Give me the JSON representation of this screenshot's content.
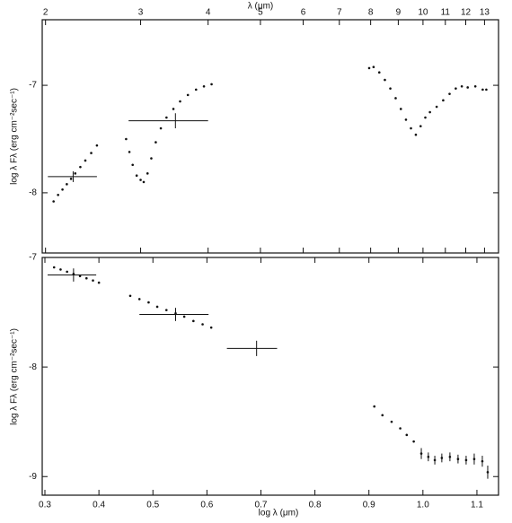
{
  "chart_data": [
    {
      "type": "scatter",
      "xlabel": "λ (μm)",
      "ylabel": "log λ Fλ (erg cm⁻²sec⁻¹)",
      "xscale": "log",
      "xlim": [
        1.972,
        13.8
      ],
      "xticks": [
        2,
        3,
        4,
        5,
        6,
        7,
        8,
        9,
        10,
        11,
        12,
        13
      ],
      "ylim": [
        -8.56,
        -6.39
      ],
      "yticks": [
        -8,
        -7
      ],
      "points": {
        "x": [
          2.07,
          2.11,
          2.15,
          2.19,
          2.23,
          2.27,
          2.32,
          2.37,
          2.43,
          2.49,
          2.82,
          2.86,
          2.9,
          2.95,
          3.0,
          3.04,
          3.09,
          3.14,
          3.2,
          3.27,
          3.35,
          3.45,
          3.55,
          3.67,
          3.8,
          3.93,
          4.06,
          7.95,
          8.1,
          8.3,
          8.5,
          8.7,
          8.9,
          9.1,
          9.3,
          9.5,
          9.7,
          9.9,
          10.1,
          10.3,
          10.6,
          10.9,
          11.2,
          11.5,
          11.8,
          12.1,
          12.5,
          12.9,
          13.1
        ],
        "y": [
          -8.08,
          -8.02,
          -7.97,
          -7.92,
          -7.87,
          -7.82,
          -7.76,
          -7.7,
          -7.63,
          -7.56,
          -7.5,
          -7.62,
          -7.74,
          -7.84,
          -7.88,
          -7.9,
          -7.82,
          -7.68,
          -7.53,
          -7.4,
          -7.3,
          -7.22,
          -7.15,
          -7.09,
          -7.04,
          -7.01,
          -6.99,
          -6.84,
          -6.83,
          -6.88,
          -6.95,
          -7.03,
          -7.12,
          -7.22,
          -7.32,
          -7.4,
          -7.46,
          -7.38,
          -7.3,
          -7.25,
          -7.2,
          -7.14,
          -7.08,
          -7.03,
          -7.01,
          -7.02,
          -7.01,
          -7.04,
          -7.04
        ]
      },
      "crosses": [
        {
          "x": 2.25,
          "y": -7.85,
          "xlo": 2.02,
          "xhi": 2.49,
          "ylo": -7.9,
          "yhi": -7.8
        },
        {
          "x": 3.48,
          "y": -7.33,
          "xlo": 2.85,
          "xhi": 4.0,
          "ylo": -7.4,
          "yhi": -7.26
        }
      ]
    },
    {
      "type": "scatter",
      "xlabel": "log λ (μm)",
      "ylabel": "log λ Fλ (erg cm⁻²sec⁻¹)",
      "xlim": [
        0.295,
        1.14
      ],
      "xticks": [
        0.3,
        0.4,
        0.5,
        0.6,
        0.7,
        0.8,
        0.9,
        {
          "value": 1,
          "label": "1.0"
        },
        1.1
      ],
      "ylim": [
        -9.17,
        -7
      ],
      "yticks": [
        -9,
        -8,
        -7
      ],
      "points": {
        "x": [
          0.317,
          0.329,
          0.341,
          0.353,
          0.365,
          0.377,
          0.389,
          0.4,
          0.458,
          0.475,
          0.492,
          0.508,
          0.525,
          0.542,
          0.558,
          0.575,
          0.592,
          0.608,
          0.91,
          0.925,
          0.942,
          0.958,
          0.97,
          0.983
        ],
        "y": [
          -7.09,
          -7.11,
          -7.13,
          -7.15,
          -7.17,
          -7.19,
          -7.21,
          -7.23,
          -7.35,
          -7.38,
          -7.41,
          -7.45,
          -7.48,
          -7.51,
          -7.54,
          -7.58,
          -7.61,
          -7.64,
          -8.36,
          -8.44,
          -8.5,
          -8.56,
          -8.62,
          -8.68
        ]
      },
      "errorbars": {
        "x": [
          0.997,
          1.01,
          1.022,
          1.035,
          1.05,
          1.065,
          1.08,
          1.095,
          1.11,
          1.12
        ],
        "y": [
          -8.79,
          -8.82,
          -8.85,
          -8.83,
          -8.82,
          -8.84,
          -8.85,
          -8.84,
          -8.86,
          -8.96
        ],
        "yerr": [
          0.05,
          0.04,
          0.04,
          0.04,
          0.04,
          0.04,
          0.04,
          0.05,
          0.05,
          0.06
        ]
      },
      "crosses": [
        {
          "x": 0.353,
          "y": -7.16,
          "xlo": 0.305,
          "xhi": 0.395,
          "ylo": -7.22,
          "yhi": -7.1
        },
        {
          "x": 0.542,
          "y": -7.52,
          "xlo": 0.475,
          "xhi": 0.603,
          "ylo": -7.58,
          "yhi": -7.46
        },
        {
          "x": 0.692,
          "y": -7.83,
          "xlo": 0.637,
          "xhi": 0.73,
          "ylo": -7.9,
          "yhi": -7.76
        }
      ]
    }
  ]
}
